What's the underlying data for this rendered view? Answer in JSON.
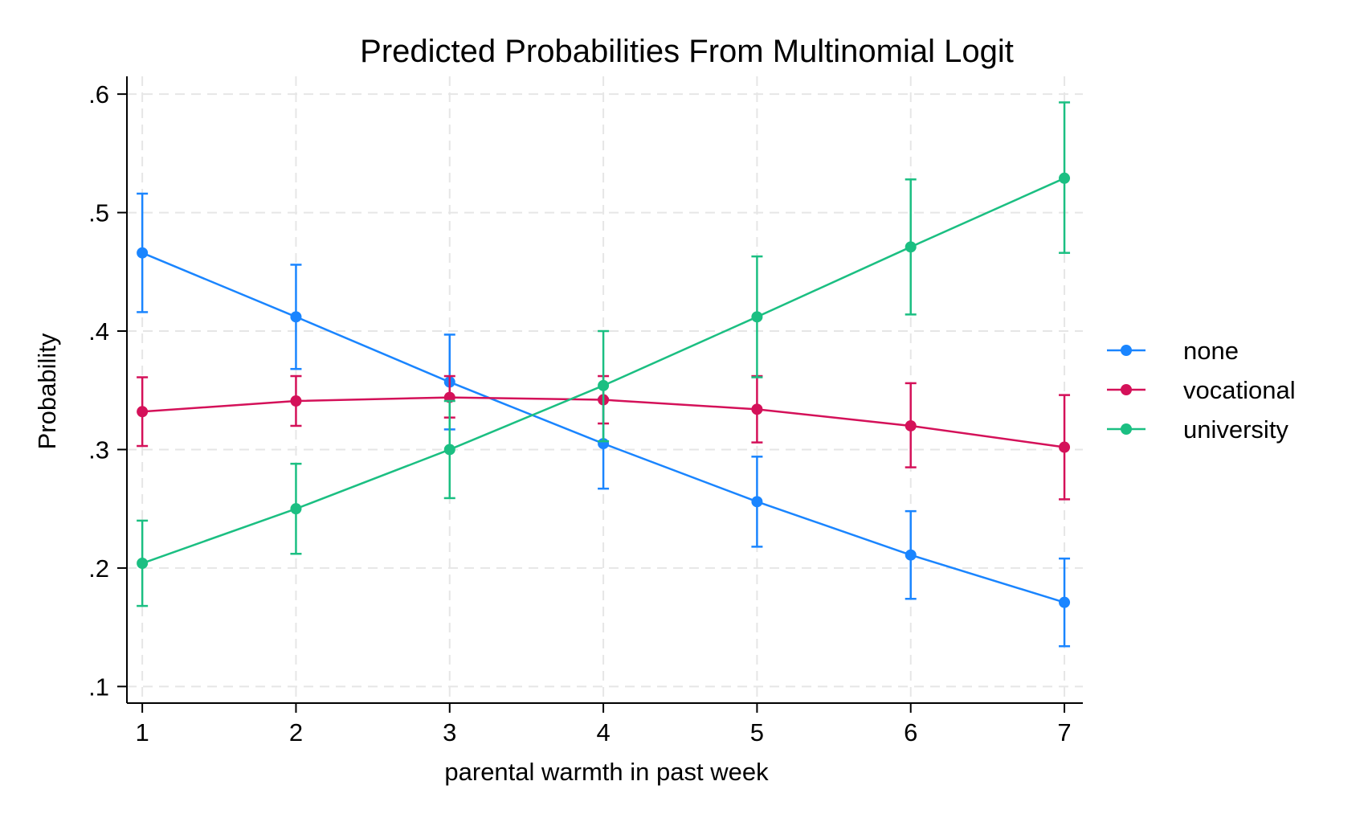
{
  "chart_data": {
    "type": "line",
    "title": "Predicted Probabilities From Multinomial Logit",
    "xlabel": "parental warmth in past week",
    "ylabel": "Probability",
    "x": [
      1,
      2,
      3,
      4,
      5,
      6,
      7
    ],
    "xticks": [
      "1",
      "2",
      "3",
      "4",
      "5",
      "6",
      "7"
    ],
    "xlim": [
      0.9,
      7.12
    ],
    "yticks": [
      ".1",
      ".2",
      ".3",
      ".4",
      ".5",
      ".6"
    ],
    "ytick_values": [
      0.1,
      0.2,
      0.3,
      0.4,
      0.5,
      0.6
    ],
    "ylim": [
      0.086,
      0.615
    ],
    "grid": true,
    "legend_position": "right",
    "series": [
      {
        "name": "none",
        "color": "#1a85ff",
        "values": [
          0.466,
          0.412,
          0.357,
          0.305,
          0.256,
          0.211,
          0.171
        ],
        "ci_low": [
          0.416,
          0.368,
          0.317,
          0.267,
          0.218,
          0.174,
          0.134
        ],
        "ci_high": [
          0.516,
          0.456,
          0.397,
          0.343,
          0.294,
          0.248,
          0.208
        ]
      },
      {
        "name": "vocational",
        "color": "#d41159",
        "values": [
          0.332,
          0.341,
          0.344,
          0.342,
          0.334,
          0.32,
          0.302
        ],
        "ci_low": [
          0.303,
          0.32,
          0.327,
          0.322,
          0.306,
          0.285,
          0.258
        ],
        "ci_high": [
          0.361,
          0.362,
          0.362,
          0.362,
          0.362,
          0.356,
          0.346
        ]
      },
      {
        "name": "university",
        "color": "#1bbf82",
        "values": [
          0.204,
          0.25,
          0.3,
          0.354,
          0.412,
          0.471,
          0.529
        ],
        "ci_low": [
          0.168,
          0.212,
          0.259,
          0.307,
          0.361,
          0.414,
          0.466
        ],
        "ci_high": [
          0.24,
          0.288,
          0.341,
          0.4,
          0.463,
          0.528,
          0.593
        ]
      }
    ]
  }
}
